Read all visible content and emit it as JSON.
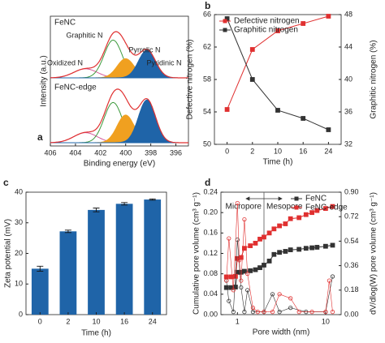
{
  "chart_data": [
    {
      "type": "xps",
      "panel_label": "a",
      "xlabel": "Binding energy (eV)",
      "ylabel": "Intensity (a.u.)",
      "xlim": [
        406,
        395
      ],
      "xticks": [
        406,
        404,
        402,
        400,
        398,
        396
      ],
      "envelope_color": "#e03030",
      "components": [
        {
          "name": "Oxidized N",
          "color": "#d65a9c",
          "fill": false,
          "center": 403.2,
          "fwhm": 2.2
        },
        {
          "name": "Graphitic N",
          "color": "#3d9a3d",
          "fill": false,
          "center": 401.0,
          "fwhm": 1.7
        },
        {
          "name": "Pyrrolic N",
          "color": "#f0a020",
          "fill": true,
          "center": 400.0,
          "fwhm": 1.6
        },
        {
          "name": "Pyridinic N",
          "color": "#1f64a8",
          "fill": true,
          "center": 398.3,
          "fwhm": 1.6
        }
      ],
      "spectra": [
        {
          "name": "FeNC",
          "heights": [
            0.18,
            0.75,
            0.38,
            0.55
          ]
        },
        {
          "name": "FeNC-edge",
          "heights": [
            0.2,
            0.8,
            0.55,
            0.85
          ]
        }
      ]
    },
    {
      "type": "line",
      "panel_label": "b",
      "xlabel": "Time (h)",
      "ylabel": "Defective nitrogen (%)",
      "ylabel_color": "#e03030",
      "y2label": "Graphitic nitrogen (%)",
      "categories": [
        "0",
        "2",
        "10",
        "16",
        "24"
      ],
      "ylim": [
        50,
        66
      ],
      "yticks": [
        50,
        54,
        58,
        62,
        66
      ],
      "y2lim": [
        32,
        48
      ],
      "y2ticks": [
        32,
        36,
        40,
        44,
        48
      ],
      "legend": "upper left",
      "series": [
        {
          "name": "Defective nitrogen",
          "color": "#e03030",
          "marker": "square",
          "values": [
            54.3,
            61.7,
            64.0,
            64.9,
            65.8
          ]
        },
        {
          "name": "Graphitic nitrogen",
          "color": "#333333",
          "marker": "square",
          "axis": "y2",
          "values": [
            47.5,
            40.0,
            36.2,
            35.2,
            33.8
          ]
        }
      ]
    },
    {
      "type": "bar",
      "panel_label": "c",
      "xlabel": "Time (h)",
      "ylabel": "Zeta potential (mV)",
      "categories": [
        "0",
        "2",
        "10",
        "16",
        "24"
      ],
      "values": [
        15.0,
        27.2,
        34.2,
        36.2,
        37.6
      ],
      "errors": [
        0.8,
        0.4,
        0.6,
        0.4,
        0.2
      ],
      "color": "#1f64a8",
      "ylim": [
        0,
        40
      ],
      "yticks": [
        0,
        10,
        20,
        30,
        40
      ]
    },
    {
      "type": "line",
      "panel_label": "d",
      "xlabel": "Pore width (nm)",
      "ylabel": "Cumulative pore volume (cm³ g⁻¹)",
      "y2label": "dV/dlog(W) pore volume (cm³ g⁻¹)",
      "xscale": "log",
      "xlim": [
        0.65,
        15
      ],
      "xticks": [
        1,
        10
      ],
      "ylim": [
        0,
        0.24
      ],
      "yticks": [
        {
          "value": 0,
          "label": "0.00"
        },
        0.04,
        0.08,
        0.12,
        0.16,
        {
          "value": 0.2,
          "label": "0.20"
        },
        0.24
      ],
      "y2lim": [
        0,
        0.9
      ],
      "y2ticks": [
        {
          "value": 0,
          "label": "0.00"
        },
        0.18,
        0.36,
        0.54,
        0.72,
        {
          "value": 0.9,
          "label": "0.90"
        }
      ],
      "legend": "upper right",
      "divider": 2,
      "regions": [
        "Micropore",
        "Mesopore"
      ],
      "series": [
        {
          "name": "FeNC",
          "color": "#333333",
          "marker": "square",
          "x": [
            0.75,
            0.85,
            0.95,
            1.0,
            1.1,
            1.2,
            1.4,
            1.6,
            1.8,
            2.0,
            2.3,
            2.6,
            3.0,
            3.5,
            4,
            5,
            6,
            7,
            8,
            10,
            12
          ],
          "values": [
            0.053,
            0.053,
            0.054,
            0.083,
            0.083,
            0.085,
            0.086,
            0.088,
            0.092,
            0.097,
            0.105,
            0.118,
            0.122,
            0.124,
            0.127,
            0.128,
            0.13,
            0.131,
            0.132,
            0.134,
            0.136
          ]
        },
        {
          "name": "FeNC-edge",
          "color": "#e03030",
          "marker": "square",
          "x": [
            0.75,
            0.85,
            0.95,
            1.0,
            1.1,
            1.2,
            1.4,
            1.6,
            1.8,
            2.0,
            2.3,
            2.6,
            3.0,
            3.5,
            4,
            5,
            6,
            7,
            8,
            10,
            12
          ],
          "values": [
            0.074,
            0.074,
            0.075,
            0.11,
            0.112,
            0.13,
            0.135,
            0.14,
            0.148,
            0.152,
            0.16,
            0.168,
            0.174,
            0.178,
            0.188,
            0.19,
            0.196,
            0.2,
            0.204,
            0.208,
            0.212
          ]
        },
        {
          "color": "#333333",
          "marker": "circle",
          "hollow": true,
          "axis": "y2",
          "x": [
            0.75,
            0.8,
            0.9,
            1.0,
            1.1,
            1.2,
            1.3,
            1.5,
            2.0,
            2.5,
            3,
            4,
            6,
            10,
            12
          ],
          "values": [
            0.25,
            0.1,
            0.02,
            0.55,
            0.2,
            0.02,
            0.18,
            0.02,
            0.02,
            0.15,
            0.02,
            0.05,
            0.02,
            0.02,
            0.28
          ]
        },
        {
          "color": "#e03030",
          "marker": "circle",
          "hollow": true,
          "axis": "y2",
          "x": [
            0.75,
            0.8,
            0.9,
            1.0,
            1.05,
            1.1,
            1.2,
            1.3,
            1.5,
            1.7,
            2.0,
            2.5,
            3.0,
            4.0,
            5,
            7,
            10,
            11,
            12
          ],
          "values": [
            0.25,
            0.56,
            0.18,
            0.82,
            0.4,
            0.25,
            0.7,
            0.3,
            0.05,
            0.02,
            0.02,
            0.02,
            0.15,
            0.12,
            0.02,
            0.02,
            0.02,
            0.25,
            0.02
          ]
        }
      ]
    }
  ]
}
